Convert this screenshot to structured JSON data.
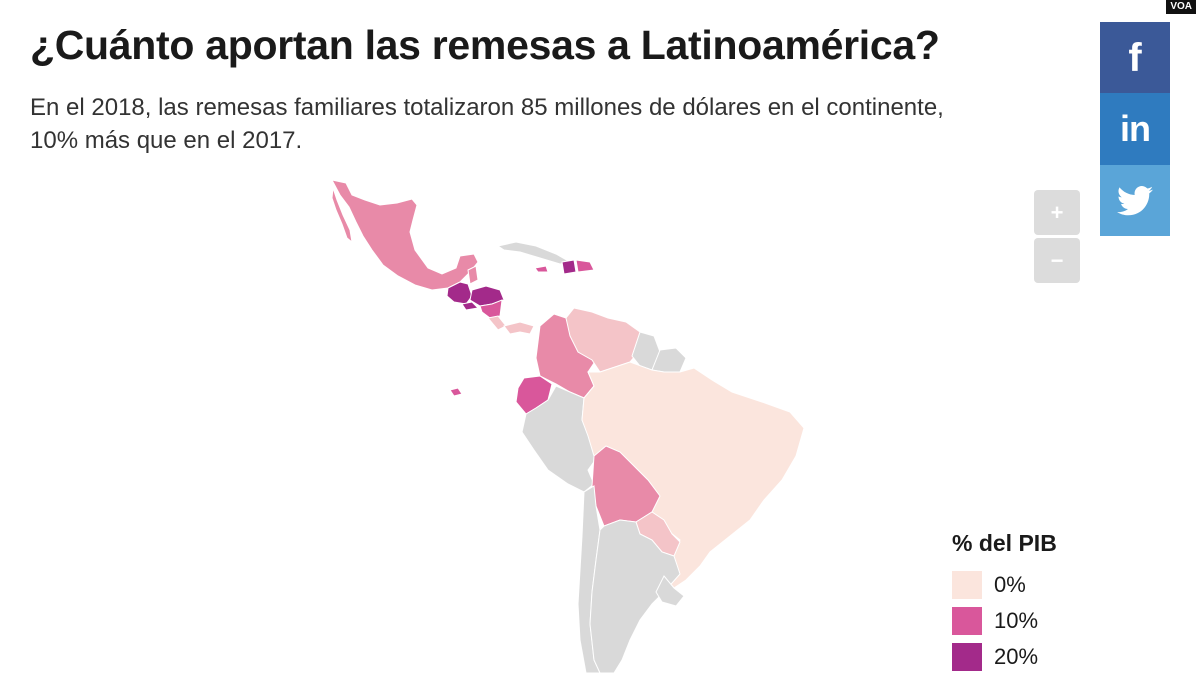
{
  "brand": "VOA",
  "title": "¿Cuánto aportan las remesas a Latinoamérica?",
  "subtitle": "En el 2018, las remesas familiares totalizaron 85 millones de dólares en el continente, 10% más que en el 2017.",
  "zoom": {
    "in_label": "+",
    "out_label": "−"
  },
  "share": {
    "facebook": "f",
    "linkedin": "in",
    "twitter_icon": "twitter-bird"
  },
  "legend": {
    "title": "% del PIB",
    "items": [
      {
        "label": "0%",
        "color": "#fbe5dd"
      },
      {
        "label": "10%",
        "color": "#d9579b"
      },
      {
        "label": "20%",
        "color": "#a32a8a"
      }
    ]
  },
  "colors": {
    "no_data": "#d9d9d9",
    "level_0": "#fbe5dd",
    "level_1": "#f4c4c8",
    "level_2": "#e88aa8",
    "level_3": "#d9579b",
    "level_4": "#a32a8a",
    "border": "#ffffff"
  },
  "map_regions": [
    {
      "name": "México",
      "level": "level_2"
    },
    {
      "name": "Guatemala",
      "level": "level_4"
    },
    {
      "name": "Belice",
      "level": "level_2"
    },
    {
      "name": "Honduras",
      "level": "level_4"
    },
    {
      "name": "El Salvador",
      "level": "level_4"
    },
    {
      "name": "Nicaragua",
      "level": "level_3"
    },
    {
      "name": "Costa Rica",
      "level": "level_1"
    },
    {
      "name": "Panamá",
      "level": "level_1"
    },
    {
      "name": "Cuba",
      "level": "no_data"
    },
    {
      "name": "Jamaica",
      "level": "level_3"
    },
    {
      "name": "Haití",
      "level": "level_4"
    },
    {
      "name": "República Dominicana",
      "level": "level_3"
    },
    {
      "name": "Colombia",
      "level": "level_2"
    },
    {
      "name": "Venezuela",
      "level": "level_1"
    },
    {
      "name": "Guyana",
      "level": "no_data"
    },
    {
      "name": "Surinam",
      "level": "no_data"
    },
    {
      "name": "Ecuador",
      "level": "level_3"
    },
    {
      "name": "Perú",
      "level": "no_data"
    },
    {
      "name": "Brasil",
      "level": "level_0"
    },
    {
      "name": "Bolivia",
      "level": "level_2"
    },
    {
      "name": "Paraguay",
      "level": "level_1"
    },
    {
      "name": "Chile",
      "level": "no_data"
    },
    {
      "name": "Argentina",
      "level": "no_data"
    },
    {
      "name": "Uruguay",
      "level": "no_data"
    },
    {
      "name": "Galápagos",
      "level": "level_3"
    }
  ]
}
